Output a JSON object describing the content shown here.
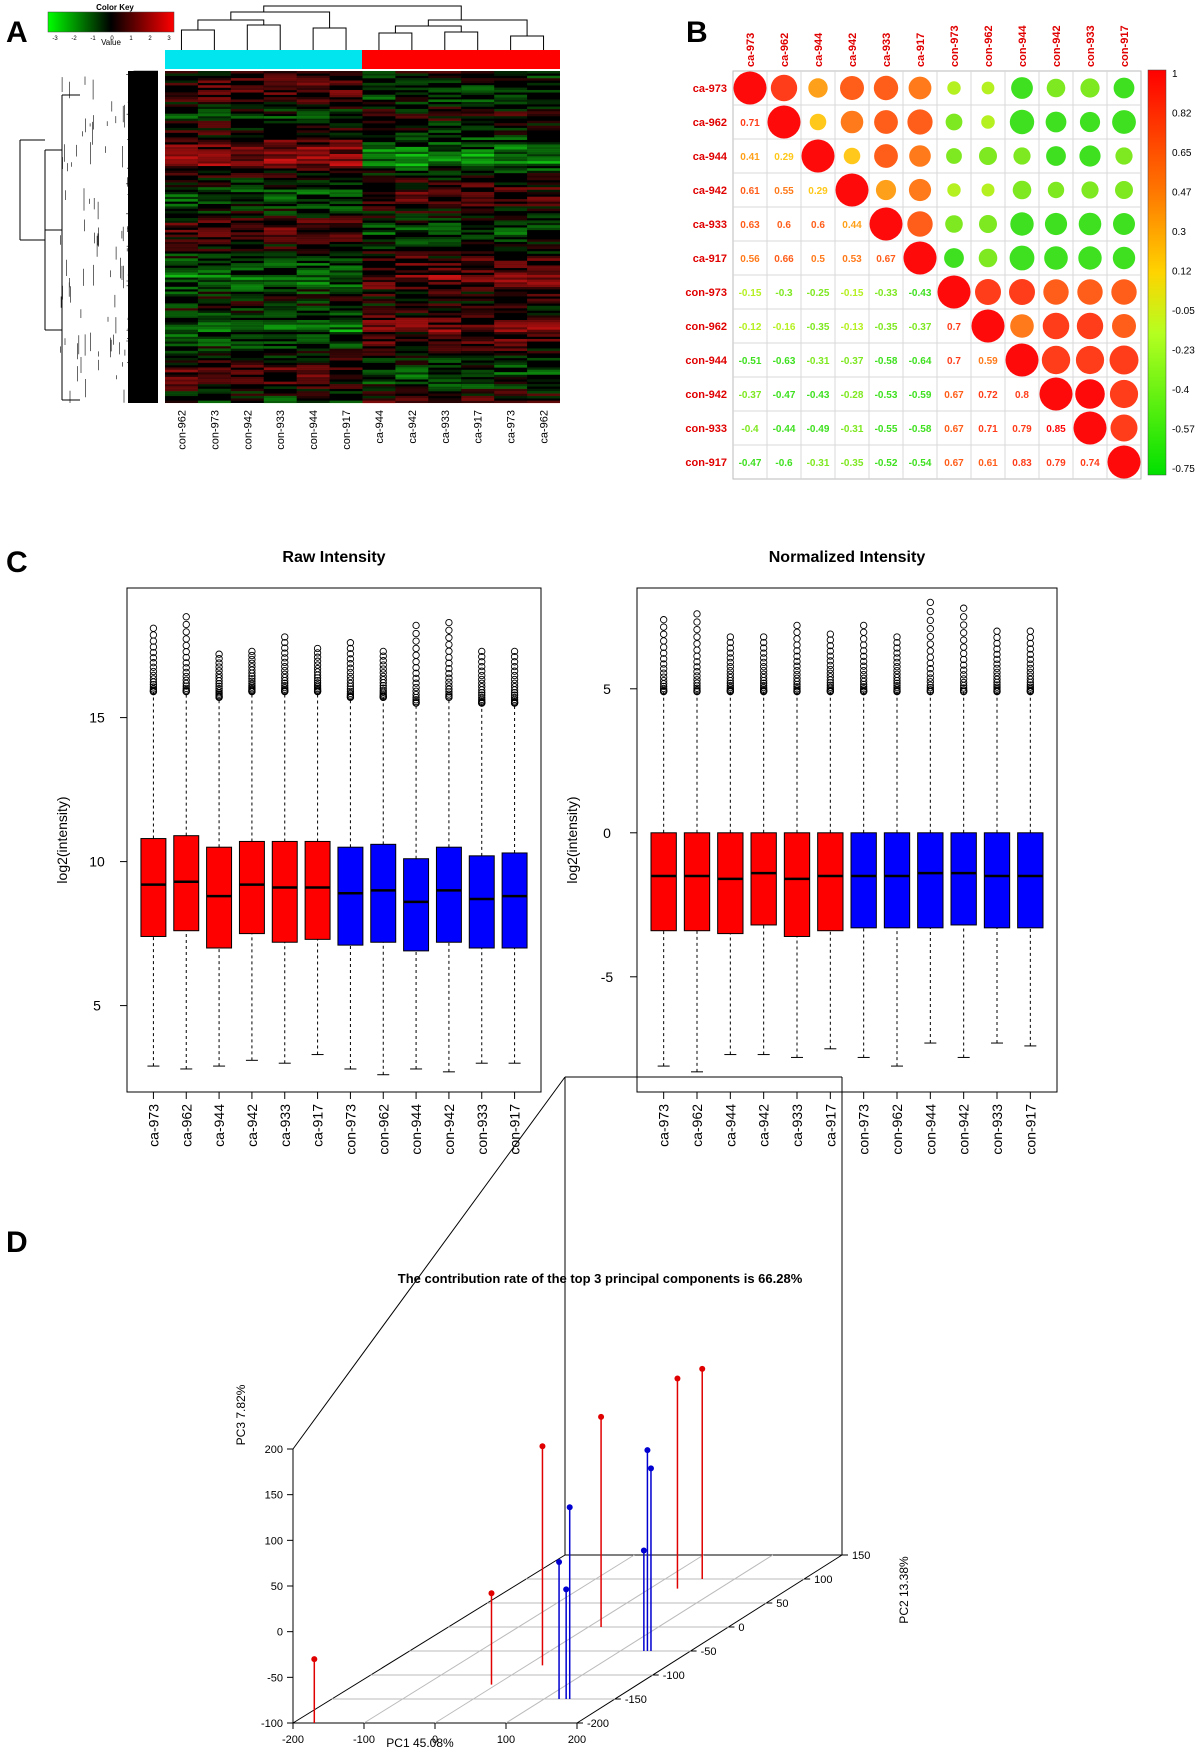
{
  "panels": {
    "A": {
      "letter": "A",
      "color_key": {
        "title": "Color Key",
        "label": "Value",
        "ticks": [
          "-3",
          "-2",
          "-1",
          "0",
          "1",
          "2",
          "3"
        ]
      },
      "group_bar": [
        {
          "color": "#00e5ee"
        },
        {
          "color": "#ff0000"
        }
      ],
      "columns": [
        "con-962",
        "con-973",
        "con-942",
        "con-933",
        "con-944",
        "con-917",
        "ca-944",
        "ca-942",
        "ca-933",
        "ca-917",
        "ca-973",
        "ca-962"
      ]
    },
    "B": {
      "letter": "B",
      "samples": [
        "ca-973",
        "ca-962",
        "ca-944",
        "ca-942",
        "ca-933",
        "ca-917",
        "con-973",
        "con-962",
        "con-944",
        "con-942",
        "con-933",
        "con-917"
      ],
      "lower_values": [
        [],
        [
          "0.71"
        ],
        [
          "0.41",
          "0.29"
        ],
        [
          "0.61",
          "0.55",
          "0.29"
        ],
        [
          "0.63",
          "0.6",
          "0.6",
          "0.44"
        ],
        [
          "0.56",
          "0.66",
          "0.5",
          "0.53",
          "0.67"
        ],
        [
          "-0.15",
          "-0.3",
          "-0.25",
          "-0.15",
          "-0.33",
          "-0.43"
        ],
        [
          "-0.12",
          "-0.16",
          "-0.35",
          "-0.13",
          "-0.35",
          "-0.37",
          "0.7"
        ],
        [
          "-0.51",
          "-0.63",
          "-0.31",
          "-0.37",
          "-0.58",
          "-0.64",
          "0.7",
          "0.59"
        ],
        [
          "-0.37",
          "-0.47",
          "-0.43",
          "-0.28",
          "-0.53",
          "-0.59",
          "0.67",
          "0.72",
          "0.8"
        ],
        [
          "-0.4",
          "-0.44",
          "-0.49",
          "-0.31",
          "-0.55",
          "-0.58",
          "0.67",
          "0.71",
          "0.79",
          "0.85"
        ],
        [
          "-0.47",
          "-0.6",
          "-0.31",
          "-0.35",
          "-0.52",
          "-0.54",
          "0.67",
          "0.61",
          "0.83",
          "0.79",
          "0.74"
        ]
      ],
      "colorbar_ticks": [
        "1",
        "0.82",
        "0.65",
        "0.47",
        "0.3",
        "0.12",
        "-0.05",
        "-0.23",
        "-0.4",
        "-0.57",
        "-0.75"
      ]
    },
    "C": {
      "letter": "C",
      "samples": [
        "ca-973",
        "ca-962",
        "ca-944",
        "ca-942",
        "ca-933",
        "ca-917",
        "con-973",
        "con-962",
        "con-944",
        "con-942",
        "con-933",
        "con-917"
      ],
      "group_colors": {
        "ca": "#ff0000",
        "con": "#0000ff"
      },
      "ylabel": "log2(intensity)",
      "raw": {
        "title": "Raw Intensity",
        "ylim": [
          2.0,
          19.5
        ],
        "yticks": [
          5,
          10,
          15
        ],
        "boxes": [
          {
            "q1": 7.4,
            "med": 9.2,
            "q3": 10.8,
            "lo": 2.9,
            "whi": 15.9,
            "omax": 18.1
          },
          {
            "q1": 7.6,
            "med": 9.3,
            "q3": 10.9,
            "lo": 2.8,
            "whi": 15.9,
            "omax": 18.5
          },
          {
            "q1": 7.0,
            "med": 8.8,
            "q3": 10.5,
            "lo": 2.9,
            "whi": 15.7,
            "omax": 17.2
          },
          {
            "q1": 7.5,
            "med": 9.2,
            "q3": 10.7,
            "lo": 3.1,
            "whi": 15.9,
            "omax": 17.3
          },
          {
            "q1": 7.2,
            "med": 9.1,
            "q3": 10.7,
            "lo": 3.0,
            "whi": 15.9,
            "omax": 17.8
          },
          {
            "q1": 7.3,
            "med": 9.1,
            "q3": 10.7,
            "lo": 3.3,
            "whi": 15.9,
            "omax": 17.4
          },
          {
            "q1": 7.1,
            "med": 8.9,
            "q3": 10.5,
            "lo": 2.8,
            "whi": 15.7,
            "omax": 17.6
          },
          {
            "q1": 7.2,
            "med": 9.0,
            "q3": 10.6,
            "lo": 2.6,
            "whi": 15.7,
            "omax": 17.3
          },
          {
            "q1": 6.9,
            "med": 8.6,
            "q3": 10.1,
            "lo": 2.8,
            "whi": 15.5,
            "omax": 18.2
          },
          {
            "q1": 7.2,
            "med": 9.0,
            "q3": 10.5,
            "lo": 2.7,
            "whi": 15.7,
            "omax": 18.3
          },
          {
            "q1": 7.0,
            "med": 8.7,
            "q3": 10.2,
            "lo": 3.0,
            "whi": 15.5,
            "omax": 17.3
          },
          {
            "q1": 7.0,
            "med": 8.8,
            "q3": 10.3,
            "lo": 3.0,
            "whi": 15.5,
            "omax": 17.3
          }
        ]
      },
      "normalized": {
        "title": "Normalized Intensity",
        "ylim": [
          -9.0,
          8.5
        ],
        "yticks": [
          -5,
          0,
          5
        ],
        "boxes": [
          {
            "q1": -3.4,
            "med": -1.5,
            "q3": 0.0,
            "lo": -8.1,
            "whi": 4.9,
            "omax": 7.4
          },
          {
            "q1": -3.4,
            "med": -1.5,
            "q3": 0.0,
            "lo": -8.3,
            "whi": 4.9,
            "omax": 7.6
          },
          {
            "q1": -3.5,
            "med": -1.6,
            "q3": 0.0,
            "lo": -7.7,
            "whi": 4.9,
            "omax": 6.8
          },
          {
            "q1": -3.2,
            "med": -1.4,
            "q3": 0.0,
            "lo": -7.7,
            "whi": 4.9,
            "omax": 6.8
          },
          {
            "q1": -3.6,
            "med": -1.6,
            "q3": 0.0,
            "lo": -7.8,
            "whi": 4.9,
            "omax": 7.2
          },
          {
            "q1": -3.4,
            "med": -1.5,
            "q3": 0.0,
            "lo": -7.5,
            "whi": 4.9,
            "omax": 6.9
          },
          {
            "q1": -3.3,
            "med": -1.5,
            "q3": 0.0,
            "lo": -7.8,
            "whi": 4.9,
            "omax": 7.2
          },
          {
            "q1": -3.3,
            "med": -1.5,
            "q3": 0.0,
            "lo": -8.1,
            "whi": 4.9,
            "omax": 6.8
          },
          {
            "q1": -3.3,
            "med": -1.4,
            "q3": 0.0,
            "lo": -7.3,
            "whi": 4.9,
            "omax": 8.0
          },
          {
            "q1": -3.2,
            "med": -1.4,
            "q3": 0.0,
            "lo": -7.8,
            "whi": 4.9,
            "omax": 7.8
          },
          {
            "q1": -3.3,
            "med": -1.5,
            "q3": 0.0,
            "lo": -7.3,
            "whi": 4.9,
            "omax": 7.0
          },
          {
            "q1": -3.3,
            "med": -1.5,
            "q3": 0.0,
            "lo": -7.4,
            "whi": 4.9,
            "omax": 7.0
          }
        ]
      }
    },
    "D": {
      "letter": "D",
      "title": "The contribution rate of the top 3 principal components is 66.28%",
      "xlabel": "PC1 45.08%",
      "ylabel": "PC2 13.38%",
      "zlabel": "PC3 7.82%",
      "xticks": [
        "-200",
        "-100",
        "0",
        "100",
        "200"
      ],
      "yticks": [
        "-200",
        "-150",
        "-100",
        "-50",
        "0",
        "50",
        "100",
        "150"
      ],
      "zticks": [
        "-100",
        "-50",
        "0",
        "50",
        "100",
        "150",
        "200"
      ]
    }
  },
  "chart_data": [
    {
      "type": "heatmap",
      "title": "",
      "columns": [
        "con-962",
        "con-973",
        "con-942",
        "con-933",
        "con-944",
        "con-917",
        "ca-944",
        "ca-942",
        "ca-933",
        "ca-917",
        "ca-973",
        "ca-962"
      ],
      "color_scale": {
        "min": -3,
        "max": 3,
        "low": "#00ff00",
        "mid": "#000000",
        "high": "#ff0000"
      }
    },
    {
      "type": "heatmap",
      "title": "",
      "labels": [
        "ca-973",
        "ca-962",
        "ca-944",
        "ca-942",
        "ca-933",
        "ca-917",
        "con-973",
        "con-962",
        "con-944",
        "con-942",
        "con-933",
        "con-917"
      ],
      "range": [
        -0.75,
        1
      ]
    },
    {
      "type": "table",
      "title": "Raw Intensity",
      "ylabel": "log2(intensity)"
    },
    {
      "type": "table",
      "title": "Normalized Intensity",
      "ylabel": "log2(intensity)"
    },
    {
      "type": "scatter",
      "title": "The contribution rate of the top 3 principal components is 66.28%",
      "xlabel": "PC1 45.08%",
      "ylabel": "PC2 13.38%",
      "zlabel": "PC3 7.82%",
      "xlim": [
        -200,
        200
      ],
      "ylim": [
        -200,
        150
      ],
      "zlim": [
        -100,
        200
      ],
      "series": [
        {
          "color": "#e00000",
          "points": [
            [
              -170,
              -200,
              -30
            ],
            [
              -8,
              -120,
              0
            ],
            [
              20,
              -80,
              140
            ],
            [
              35,
              80,
              130
            ],
            [
              15,
              0,
              130
            ],
            [
              48,
              100,
              130
            ]
          ]
        },
        {
          "color": "#0000d0",
          "points": [
            [
              120,
              -150,
              50
            ],
            [
              130,
              -150,
              20
            ],
            [
              135,
              -150,
              110
            ],
            [
              130,
              -50,
              10
            ],
            [
              135,
              -50,
              120
            ],
            [
              140,
              -50,
              100
            ]
          ]
        }
      ]
    }
  ]
}
